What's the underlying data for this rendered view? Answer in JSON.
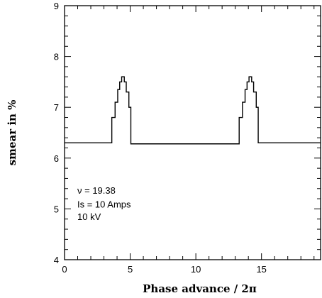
{
  "chart_data": {
    "type": "line",
    "title": "",
    "xlabel": "Phase advance / 2π",
    "ylabel": "smear in %",
    "xlim": [
      0,
      19.5
    ],
    "ylim": [
      4,
      9
    ],
    "x_ticks": [
      0,
      5,
      10,
      15
    ],
    "x_tick_labels": [
      "0",
      "5",
      "10",
      "15"
    ],
    "y_ticks": [
      4,
      5,
      6,
      7,
      8,
      9
    ],
    "y_tick_labels": [
      "4",
      "5",
      "6",
      "7",
      "8",
      "9"
    ],
    "grid": false,
    "legend": "none",
    "annotations": [
      "ν = 19.38",
      "Is = 10 Amps",
      "10 kV"
    ],
    "series": [
      {
        "x": [
          0,
          3.6,
          3.6,
          3.85,
          3.85,
          4.05,
          4.05,
          4.2,
          4.2,
          4.35,
          4.35,
          4.55,
          4.55,
          4.7,
          4.7,
          4.9,
          4.9,
          5.05,
          5.05,
          13.3,
          13.3,
          13.55,
          13.55,
          13.75,
          13.75,
          13.9,
          13.9,
          14.05,
          14.05,
          14.25,
          14.25,
          14.4,
          14.4,
          14.6,
          14.6,
          14.75,
          14.75,
          19.5
        ],
        "y": [
          6.3,
          6.3,
          6.8,
          6.8,
          7.1,
          7.1,
          7.35,
          7.35,
          7.5,
          7.5,
          7.6,
          7.6,
          7.5,
          7.5,
          7.3,
          7.3,
          7.0,
          7.0,
          6.28,
          6.28,
          6.8,
          6.8,
          7.1,
          7.1,
          7.35,
          7.35,
          7.5,
          7.5,
          7.6,
          7.6,
          7.5,
          7.5,
          7.3,
          7.3,
          7.0,
          7.0,
          6.3,
          6.3
        ]
      }
    ]
  }
}
